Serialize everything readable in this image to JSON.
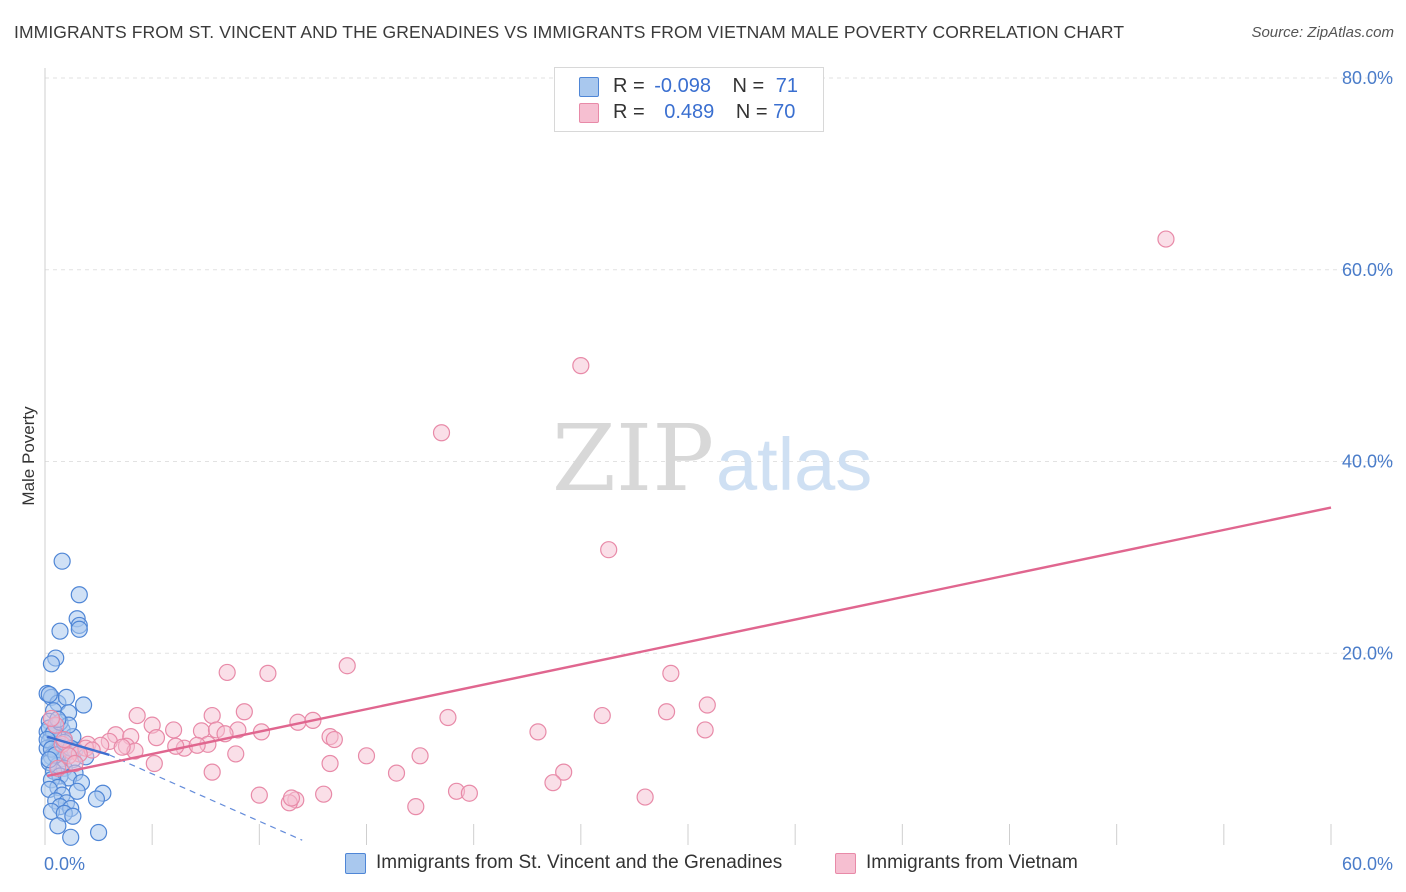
{
  "header": {
    "title": "IMMIGRANTS FROM ST. VINCENT AND THE GRENADINES VS IMMIGRANTS FROM VIETNAM MALE POVERTY CORRELATION CHART",
    "source": "Source: ZipAtlas.com"
  },
  "legend": {
    "series1": {
      "r_label": "R =",
      "r_value": "-0.098",
      "n_label": "N =",
      "n_value": "71"
    },
    "series2": {
      "r_label": "R =",
      "r_value": "0.489",
      "n_label": "N =",
      "n_value": "70"
    }
  },
  "watermark": {
    "zip": "ZIP",
    "atlas": "atlas"
  },
  "colors": {
    "blue_fill": "#a9c8ee",
    "blue_stroke": "#4f86d6",
    "blue_line": "#3d6fd1",
    "pink_fill": "#f6bfd1",
    "pink_stroke": "#e88aa8",
    "pink_line": "#e0668f",
    "tick": "#4a7cc9",
    "grid": "#e2e2e2"
  },
  "chart_data": {
    "type": "scatter",
    "title": "IMMIGRANTS FROM ST. VINCENT AND THE GRENADINES VS IMMIGRANTS FROM VIETNAM MALE POVERTY CORRELATION CHART",
    "xlabel": "",
    "ylabel": "Male Poverty",
    "xlim": [
      0,
      60
    ],
    "ylim": [
      0,
      80
    ],
    "x_ticks": [
      "0.0%",
      "60.0%"
    ],
    "y_ticks": [
      "20.0%",
      "40.0%",
      "60.0%",
      "80.0%"
    ],
    "grid": true,
    "legend_position": "top-center",
    "series": [
      {
        "name": "Immigrants from St. Vincent and the Grenadines",
        "color": "#4f86d6",
        "r": -0.098,
        "n": 71,
        "trend": {
          "x": [
            0.1,
            3.0
          ],
          "y": [
            11.3,
            9.4
          ]
        },
        "trend_extension": {
          "x": [
            3.0,
            12.0
          ],
          "y": [
            9.4,
            0.5
          ]
        },
        "points": [
          [
            0.8,
            29.6
          ],
          [
            1.6,
            26.1
          ],
          [
            1.5,
            23.6
          ],
          [
            1.6,
            22.9
          ],
          [
            0.7,
            22.3
          ],
          [
            1.6,
            22.5
          ],
          [
            0.5,
            19.5
          ],
          [
            0.3,
            18.9
          ],
          [
            0.1,
            15.8
          ],
          [
            0.3,
            15.4
          ],
          [
            0.6,
            14.8
          ],
          [
            1.0,
            15.4
          ],
          [
            1.8,
            14.6
          ],
          [
            0.4,
            14.0
          ],
          [
            1.1,
            13.8
          ],
          [
            0.2,
            12.9
          ],
          [
            0.5,
            12.4
          ],
          [
            0.8,
            12.0
          ],
          [
            0.1,
            11.8
          ],
          [
            0.3,
            11.4
          ],
          [
            0.6,
            11.2
          ],
          [
            0.9,
            11.0
          ],
          [
            1.3,
            11.3
          ],
          [
            0.2,
            10.8
          ],
          [
            0.4,
            10.5
          ],
          [
            0.7,
            10.3
          ],
          [
            0.1,
            10.1
          ],
          [
            0.5,
            9.8
          ],
          [
            1.0,
            9.6
          ],
          [
            0.3,
            9.2
          ],
          [
            0.8,
            9.0
          ],
          [
            1.3,
            8.9
          ],
          [
            0.2,
            8.6
          ],
          [
            0.6,
            8.3
          ],
          [
            0.9,
            8.0
          ],
          [
            0.4,
            7.7
          ],
          [
            1.4,
            7.5
          ],
          [
            0.7,
            7.2
          ],
          [
            1.1,
            7.0
          ],
          [
            0.3,
            6.8
          ],
          [
            1.7,
            6.5
          ],
          [
            0.6,
            6.0
          ],
          [
            0.2,
            5.8
          ],
          [
            1.5,
            5.6
          ],
          [
            0.8,
            5.2
          ],
          [
            2.7,
            5.4
          ],
          [
            2.4,
            4.8
          ],
          [
            0.5,
            4.6
          ],
          [
            1.0,
            4.4
          ],
          [
            0.7,
            4.0
          ],
          [
            1.2,
            3.8
          ],
          [
            0.3,
            3.5
          ],
          [
            0.9,
            3.3
          ],
          [
            1.3,
            3.0
          ],
          [
            0.6,
            2.0
          ],
          [
            2.5,
            1.3
          ],
          [
            1.2,
            0.8
          ],
          [
            0.2,
            12.2
          ],
          [
            0.4,
            11.7
          ],
          [
            0.1,
            11.0
          ],
          [
            0.3,
            10.0
          ],
          [
            0.5,
            9.4
          ],
          [
            0.2,
            8.9
          ],
          [
            0.7,
            12.8
          ],
          [
            1.4,
            9.9
          ],
          [
            0.2,
            15.7
          ],
          [
            1.9,
            9.2
          ],
          [
            0.9,
            10.7
          ],
          [
            1.1,
            12.5
          ],
          [
            0.6,
            13.1
          ],
          [
            1.2,
            10.1
          ]
        ]
      },
      {
        "name": "Immigrants from Vietnam",
        "color": "#e88aa8",
        "r": 0.489,
        "n": 70,
        "trend": {
          "x": [
            0.1,
            60.0
          ],
          "y": [
            7.2,
            35.2
          ]
        },
        "points": [
          [
            52.3,
            63.2
          ],
          [
            25.0,
            50.0
          ],
          [
            18.5,
            43.0
          ],
          [
            26.3,
            30.8
          ],
          [
            14.1,
            18.7
          ],
          [
            8.5,
            18.0
          ],
          [
            10.4,
            17.9
          ],
          [
            29.2,
            17.9
          ],
          [
            30.9,
            14.6
          ],
          [
            29.0,
            13.9
          ],
          [
            26.0,
            13.5
          ],
          [
            18.8,
            13.3
          ],
          [
            9.3,
            13.9
          ],
          [
            7.8,
            13.5
          ],
          [
            4.3,
            13.5
          ],
          [
            11.8,
            12.8
          ],
          [
            12.5,
            13.0
          ],
          [
            5.0,
            12.5
          ],
          [
            6.0,
            12.0
          ],
          [
            7.3,
            11.9
          ],
          [
            8.0,
            12.0
          ],
          [
            9.0,
            12.0
          ],
          [
            10.1,
            11.8
          ],
          [
            13.3,
            11.3
          ],
          [
            13.5,
            11.0
          ],
          [
            23.0,
            11.8
          ],
          [
            30.8,
            12.0
          ],
          [
            3.3,
            11.5
          ],
          [
            4.0,
            11.3
          ],
          [
            5.2,
            11.2
          ],
          [
            3.0,
            10.8
          ],
          [
            2.0,
            10.5
          ],
          [
            2.6,
            10.4
          ],
          [
            3.8,
            10.3
          ],
          [
            6.5,
            10.1
          ],
          [
            6.1,
            10.3
          ],
          [
            7.6,
            10.5
          ],
          [
            1.2,
            9.8
          ],
          [
            1.9,
            10.1
          ],
          [
            2.2,
            9.9
          ],
          [
            8.9,
            9.5
          ],
          [
            15.0,
            9.3
          ],
          [
            17.5,
            9.3
          ],
          [
            4.2,
            9.8
          ],
          [
            1.6,
            9.5
          ],
          [
            0.8,
            10.5
          ],
          [
            0.5,
            12.5
          ],
          [
            0.3,
            13.2
          ],
          [
            1.1,
            9.3
          ],
          [
            5.1,
            8.5
          ],
          [
            13.3,
            8.5
          ],
          [
            16.4,
            7.5
          ],
          [
            24.2,
            7.6
          ],
          [
            7.8,
            7.6
          ],
          [
            23.7,
            6.5
          ],
          [
            19.2,
            5.6
          ],
          [
            19.8,
            5.4
          ],
          [
            10.0,
            5.2
          ],
          [
            13.0,
            5.3
          ],
          [
            11.7,
            4.7
          ],
          [
            11.4,
            4.4
          ],
          [
            17.3,
            4.0
          ],
          [
            28.0,
            5.0
          ],
          [
            11.5,
            4.9
          ],
          [
            0.6,
            8.0
          ],
          [
            1.4,
            8.5
          ],
          [
            0.9,
            11.0
          ],
          [
            3.6,
            10.2
          ],
          [
            7.1,
            10.4
          ],
          [
            8.4,
            11.6
          ]
        ]
      }
    ]
  },
  "bottom_legend": {
    "item1": "Immigrants from St. Vincent and the Grenadines",
    "item2": "Immigrants from Vietnam"
  }
}
